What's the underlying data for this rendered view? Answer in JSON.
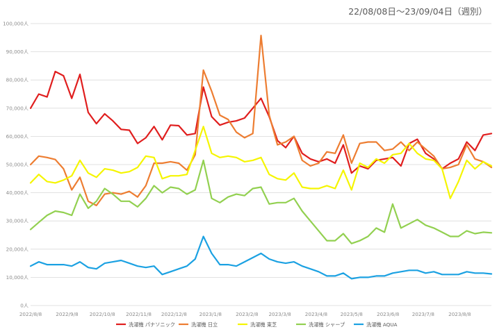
{
  "chart_data": {
    "type": "line",
    "title": "22/08/08日～23/09/04日（週別）",
    "xlabel": "",
    "ylabel": "",
    "ylim": [
      0,
      100000
    ],
    "y_ticks": [
      0,
      10000,
      20000,
      30000,
      40000,
      50000,
      60000,
      70000,
      80000,
      90000,
      100000
    ],
    "y_tick_labels": [
      "0人",
      "10,000人",
      "20,000人",
      "30,000人",
      "40,000人",
      "50,000人",
      "60,000人",
      "70,000人",
      "80,000人",
      "90,000人",
      "100,000人"
    ],
    "x_tick_labels": [
      "2022/8/8",
      "2022/9/8",
      "2022/10/8",
      "2022/11/8",
      "2022/12/8",
      "2023/1/8",
      "2023/2/8",
      "2023/3/8",
      "2023/4/8",
      "2023/5/8",
      "2023/6/8",
      "2023/7/8",
      "2023/8/8"
    ],
    "x_tick_index": [
      0,
      4.43,
      8.71,
      13.14,
      17.43,
      21.86,
      26.29,
      30.29,
      34.71,
      39.0,
      43.43,
      47.71,
      52.14
    ],
    "grid": true,
    "legend_position": "bottom",
    "series": [
      {
        "name": "洗濯機 パナソニック",
        "color": "#e01e1e",
        "values": [
          70000,
          75000,
          74000,
          83000,
          81500,
          73500,
          82000,
          68500,
          64500,
          68000,
          65500,
          62500,
          62200,
          57500,
          59500,
          63500,
          58800,
          64000,
          63800,
          60500,
          61000,
          77500,
          67000,
          64000,
          65000,
          65500,
          66500,
          70000,
          73500,
          67000,
          58500,
          56000,
          60000,
          54000,
          52000,
          51000,
          52000,
          50500,
          57000,
          47000,
          49500,
          48500,
          51500,
          52000,
          52500,
          49500,
          57500,
          59000,
          54000,
          52000,
          48500,
          50500,
          52000,
          58000,
          55000,
          60500,
          61000
        ]
      },
      {
        "name": "洗濯機 日立",
        "color": "#ed7d31",
        "values": [
          50000,
          53000,
          52500,
          51800,
          48500,
          41000,
          45500,
          37000,
          35500,
          39500,
          40000,
          39500,
          40500,
          38500,
          42500,
          50500,
          50500,
          51000,
          50500,
          48000,
          53500,
          83500,
          76000,
          67500,
          66000,
          61500,
          59500,
          61000,
          95800,
          67500,
          57000,
          58000,
          60000,
          51500,
          49500,
          50500,
          54500,
          54000,
          60500,
          50500,
          57500,
          58000,
          58000,
          55000,
          55500,
          58000,
          55000,
          58000,
          55500,
          53000,
          48500,
          49000,
          50000,
          57000,
          52000,
          51000,
          49000
        ]
      },
      {
        "name": "洗濯機 東芝",
        "color": "#f5f500",
        "values": [
          43500,
          46500,
          44000,
          43500,
          44500,
          46000,
          51500,
          47000,
          45500,
          48500,
          48000,
          47000,
          47500,
          49000,
          53000,
          52500,
          45000,
          46000,
          46000,
          46500,
          55000,
          63500,
          54000,
          52500,
          53000,
          52500,
          51000,
          51500,
          52500,
          46500,
          45000,
          44500,
          47000,
          42000,
          41500,
          41500,
          42500,
          41500,
          48000,
          41000,
          50500,
          49000,
          52000,
          50500,
          53500,
          54000,
          57500,
          54000,
          52000,
          51500,
          48500,
          38000,
          44000,
          51500,
          48500,
          51000,
          49500
        ]
      },
      {
        "name": "洗濯機 シャープ",
        "color": "#92d050",
        "values": [
          27000,
          29500,
          32000,
          33500,
          33000,
          32000,
          39500,
          34500,
          37000,
          41500,
          39500,
          37000,
          37000,
          35000,
          38000,
          42500,
          40000,
          42000,
          41500,
          39500,
          41000,
          51500,
          38000,
          36500,
          38500,
          39500,
          39000,
          41500,
          42000,
          36000,
          36500,
          36500,
          38000,
          33500,
          30000,
          26500,
          23000,
          23000,
          25500,
          22000,
          23000,
          24500,
          27500,
          26000,
          36000,
          27500,
          29000,
          30500,
          28500,
          27500,
          26000,
          24500,
          24500,
          26500,
          25500,
          26000,
          25800
        ]
      },
      {
        "name": "洗濯機 AQUA",
        "color": "#1ba1e2",
        "values": [
          14000,
          15500,
          14500,
          14500,
          14500,
          14000,
          15500,
          13500,
          13000,
          15000,
          15500,
          16000,
          15000,
          14000,
          13500,
          14000,
          11000,
          12000,
          13000,
          14000,
          16500,
          24500,
          18500,
          14500,
          14500,
          14000,
          15500,
          17000,
          18500,
          16500,
          15500,
          15000,
          15500,
          14000,
          13000,
          12000,
          10500,
          10500,
          11500,
          9500,
          10000,
          10000,
          10500,
          10500,
          11500,
          12000,
          12500,
          12500,
          11500,
          12000,
          11000,
          11000,
          11000,
          12000,
          11500,
          11500,
          11200
        ]
      }
    ]
  }
}
